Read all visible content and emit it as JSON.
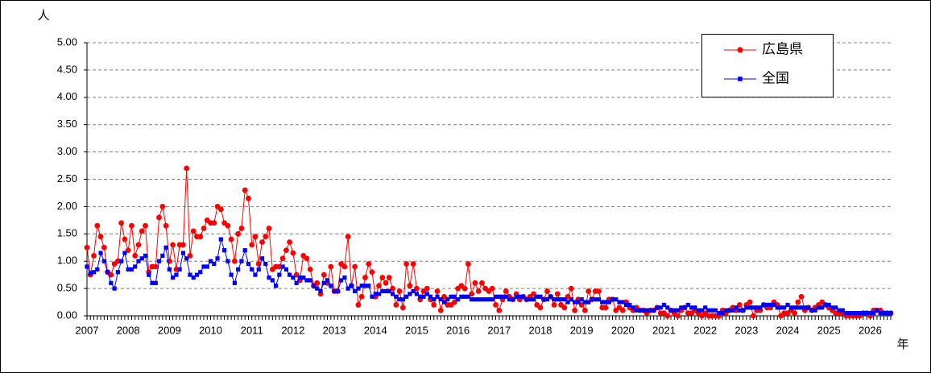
{
  "chart_data": {
    "type": "line",
    "y_label": "人",
    "x_label": "年",
    "ylim": [
      0,
      5
    ],
    "yticks": [
      {
        "value": 0,
        "label": "0.00"
      },
      {
        "value": 0.5,
        "label": "0.50"
      },
      {
        "value": 1,
        "label": "1.00"
      },
      {
        "value": 1.5,
        "label": "1.50"
      },
      {
        "value": 2,
        "label": "2.00"
      },
      {
        "value": 2.5,
        "label": "2.50"
      },
      {
        "value": 3,
        "label": "3.00"
      },
      {
        "value": 3.5,
        "label": "3.50"
      },
      {
        "value": 4,
        "label": "4.00"
      },
      {
        "value": 4.5,
        "label": "4.50"
      },
      {
        "value": 5,
        "label": "5.00"
      }
    ],
    "grid": true,
    "legend": "upper right",
    "categories": [
      "2007",
      null,
      null,
      null,
      null,
      null,
      null,
      null,
      null,
      null,
      null,
      null,
      "2008",
      null,
      null,
      null,
      null,
      null,
      null,
      null,
      null,
      null,
      null,
      null,
      "2009",
      null,
      null,
      null,
      null,
      null,
      null,
      null,
      null,
      null,
      null,
      null,
      "2010",
      null,
      null,
      null,
      null,
      null,
      null,
      null,
      null,
      null,
      null,
      null,
      "2011",
      null,
      null,
      null,
      null,
      null,
      null,
      null,
      null,
      null,
      null,
      null,
      "2012",
      null,
      null,
      null,
      null,
      null,
      null,
      null,
      null,
      null,
      null,
      null,
      "2013",
      null,
      null,
      null,
      null,
      null,
      null,
      null,
      null,
      null,
      null,
      null,
      "2014",
      null,
      null,
      null,
      null,
      null,
      null,
      null,
      null,
      null,
      null,
      null,
      "2015",
      null,
      null,
      null,
      null,
      null,
      null,
      null,
      null,
      null,
      null,
      null,
      "2016",
      null,
      null,
      null,
      null,
      null,
      null,
      null,
      null,
      null,
      null,
      null,
      "2017",
      null,
      null,
      null,
      null,
      null,
      null,
      null,
      null,
      null,
      null,
      null,
      "2018",
      null,
      null,
      null,
      null,
      null,
      null,
      null,
      null,
      null,
      null,
      null,
      "2019",
      null,
      null,
      null,
      null,
      null,
      null,
      null,
      null,
      null,
      null,
      null,
      "2020",
      null,
      null,
      null,
      null,
      null,
      null,
      null,
      null,
      null,
      null,
      null,
      "2021",
      null,
      null,
      null,
      null,
      null,
      null,
      null,
      null,
      null,
      null,
      null,
      "2022",
      null,
      null,
      null,
      null,
      null,
      null,
      null,
      null,
      null,
      null,
      null,
      "2023",
      null,
      null,
      null,
      null,
      null,
      null,
      null,
      null,
      null,
      null,
      null,
      "2024",
      null,
      null,
      null,
      null,
      null,
      null,
      null,
      null,
      null,
      null,
      null,
      "2025",
      null,
      null,
      null,
      null,
      null,
      null,
      null,
      null,
      null,
      null,
      null,
      "2026",
      null,
      null,
      null,
      null,
      null,
      null
    ],
    "series": [
      {
        "name": "広島県",
        "color": "#ff0000",
        "marker": "circle",
        "values": [
          1.25,
          0.75,
          1.1,
          1.65,
          1.45,
          1.25,
          0.8,
          0.75,
          0.95,
          1.0,
          1.7,
          1.4,
          1.2,
          1.65,
          1.1,
          1.3,
          1.55,
          1.65,
          0.8,
          0.9,
          0.9,
          1.8,
          2.0,
          1.65,
          1.0,
          1.3,
          0.85,
          1.3,
          1.3,
          2.7,
          1.1,
          1.55,
          1.45,
          1.45,
          1.6,
          1.75,
          1.7,
          1.7,
          2.0,
          1.95,
          1.7,
          1.65,
          1.4,
          1.0,
          1.5,
          1.6,
          2.3,
          2.15,
          1.3,
          1.45,
          0.95,
          1.35,
          1.45,
          1.6,
          0.85,
          0.9,
          0.9,
          1.05,
          1.2,
          1.35,
          1.15,
          0.75,
          0.65,
          1.1,
          1.05,
          0.85,
          0.55,
          0.6,
          0.4,
          0.75,
          0.6,
          0.9,
          0.45,
          0.45,
          0.95,
          0.9,
          1.45,
          0.55,
          0.9,
          0.2,
          0.35,
          0.7,
          0.95,
          0.8,
          0.35,
          0.55,
          0.7,
          0.6,
          0.7,
          0.5,
          0.2,
          0.45,
          0.15,
          0.95,
          0.55,
          0.95,
          0.5,
          0.3,
          0.45,
          0.5,
          0.3,
          0.2,
          0.45,
          0.1,
          0.35,
          0.2,
          0.2,
          0.25,
          0.5,
          0.55,
          0.5,
          0.95,
          0.4,
          0.6,
          0.45,
          0.6,
          0.5,
          0.45,
          0.5,
          0.2,
          0.1,
          0.3,
          0.45,
          0.35,
          0.3,
          0.4,
          0.3,
          0.35,
          0.3,
          0.35,
          0.4,
          0.2,
          0.15,
          0.3,
          0.45,
          0.35,
          0.2,
          0.4,
          0.2,
          0.15,
          0.35,
          0.5,
          0.1,
          0.3,
          0.2,
          0.1,
          0.45,
          0.3,
          0.45,
          0.45,
          0.15,
          0.15,
          0.3,
          0.3,
          0.1,
          0.15,
          0.1,
          0.25,
          0.15,
          0.1,
          0.15,
          0.1,
          0.1,
          0.05,
          0.1,
          0.1,
          0.15,
          0.05,
          0.05,
          0.0,
          0.1,
          0.05,
          0.0,
          0.1,
          0.15,
          0.05,
          0.05,
          0.1,
          0.05,
          0.0,
          0.05,
          0.0,
          0.0,
          0.0,
          0.0,
          0.1,
          0.05,
          0.1,
          0.15,
          0.1,
          0.2,
          0.1,
          0.2,
          0.25,
          0.0,
          0.1,
          0.1,
          0.2,
          0.15,
          0.15,
          0.25,
          0.2,
          0.0,
          0.05,
          0.05,
          0.1,
          0.05,
          0.25,
          0.35,
          0.1,
          0.15,
          0.1,
          0.15,
          0.2,
          0.25,
          0.2,
          0.15,
          0.1,
          0.05,
          0.05,
          0.05,
          0.0,
          0.0,
          0.0,
          0.0,
          0.0,
          0.05,
          0.05,
          0.0,
          0.1,
          0.1,
          0.1,
          0.05,
          0.05,
          0.05
        ]
      },
      {
        "name": "全国",
        "color": "#0000ff",
        "marker": "square",
        "values": [
          0.9,
          0.78,
          0.8,
          0.85,
          1.15,
          1.0,
          0.8,
          0.6,
          0.5,
          0.8,
          1.0,
          1.15,
          0.85,
          0.85,
          0.9,
          1.0,
          1.05,
          1.1,
          0.75,
          0.6,
          0.6,
          1.0,
          1.1,
          1.25,
          0.85,
          0.7,
          0.75,
          0.85,
          1.15,
          1.05,
          0.75,
          0.7,
          0.75,
          0.8,
          0.9,
          0.9,
          1.0,
          0.95,
          1.05,
          1.4,
          1.2,
          1.0,
          0.75,
          0.6,
          0.85,
          1.0,
          1.2,
          0.95,
          0.85,
          0.75,
          0.85,
          1.05,
          0.95,
          0.7,
          0.65,
          0.55,
          0.75,
          0.9,
          0.85,
          0.75,
          0.7,
          0.6,
          0.7,
          0.7,
          0.65,
          0.65,
          0.55,
          0.5,
          0.45,
          0.6,
          0.65,
          0.55,
          0.45,
          0.45,
          0.65,
          0.7,
          0.5,
          0.55,
          0.45,
          0.5,
          0.55,
          0.55,
          0.55,
          0.35,
          0.4,
          0.4,
          0.45,
          0.45,
          0.45,
          0.4,
          0.35,
          0.3,
          0.3,
          0.35,
          0.4,
          0.45,
          0.4,
          0.35,
          0.35,
          0.4,
          0.35,
          0.3,
          0.35,
          0.3,
          0.25,
          0.3,
          0.35,
          0.35,
          0.3,
          0.35,
          0.35,
          0.35,
          0.3,
          0.3,
          0.3,
          0.3,
          0.3,
          0.3,
          0.3,
          0.35,
          0.35,
          0.35,
          0.35,
          0.3,
          0.3,
          0.35,
          0.35,
          0.35,
          0.3,
          0.3,
          0.3,
          0.35,
          0.35,
          0.3,
          0.3,
          0.35,
          0.3,
          0.3,
          0.3,
          0.3,
          0.25,
          0.3,
          0.25,
          0.25,
          0.3,
          0.25,
          0.25,
          0.3,
          0.3,
          0.3,
          0.25,
          0.25,
          0.25,
          0.3,
          0.3,
          0.25,
          0.25,
          0.2,
          0.2,
          0.15,
          0.1,
          0.1,
          0.1,
          0.1,
          0.1,
          0.1,
          0.15,
          0.15,
          0.2,
          0.15,
          0.1,
          0.1,
          0.1,
          0.15,
          0.15,
          0.2,
          0.15,
          0.15,
          0.1,
          0.1,
          0.15,
          0.1,
          0.1,
          0.1,
          0.05,
          0.05,
          0.1,
          0.1,
          0.1,
          0.15,
          0.1,
          0.1,
          0.15,
          0.15,
          0.15,
          0.15,
          0.15,
          0.2,
          0.2,
          0.2,
          0.2,
          0.15,
          0.15,
          0.15,
          0.2,
          0.15,
          0.15,
          0.15,
          0.15,
          0.15,
          0.15,
          0.1,
          0.1,
          0.15,
          0.15,
          0.2,
          0.2,
          0.15,
          0.15,
          0.1,
          0.1,
          0.05,
          0.05,
          0.05,
          0.05,
          0.05,
          0.05,
          0.05,
          0.05,
          0.05,
          0.1,
          0.05,
          0.05,
          0.05,
          0.05
        ]
      }
    ]
  }
}
